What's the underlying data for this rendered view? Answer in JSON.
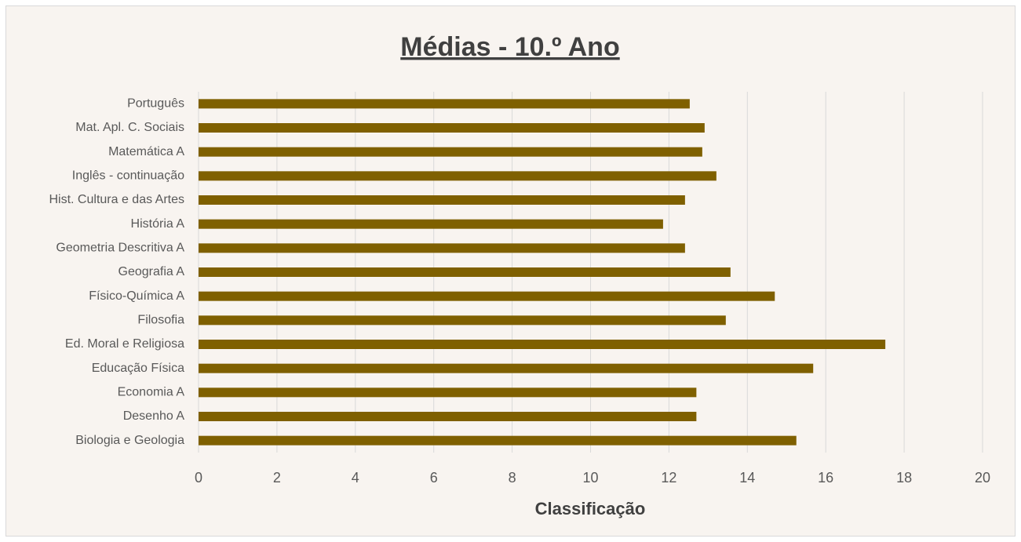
{
  "chart_data": {
    "type": "barh",
    "title": "Médias - 10.º Ano",
    "xlabel": "Classificação",
    "categories": [
      "Português",
      "Mat. Apl. C. Sociais",
      "Matemática A",
      "Inglês - continuação",
      "Hist. Cultura e das Artes",
      "História A",
      "Geometria Descritiva A",
      "Geografia A",
      "Físico-Química A",
      "Filosofia",
      "Ed. Moral e Religiosa",
      "Educação Física",
      "Economia A",
      "Desenho A",
      "Biologia e Geologia"
    ],
    "values": [
      12.53,
      12.91,
      12.85,
      13.21,
      12.41,
      11.85,
      12.41,
      13.57,
      14.7,
      13.45,
      17.52,
      15.68,
      12.7,
      12.7,
      15.25
    ],
    "color": "#7f6000",
    "xlim": [
      0,
      20
    ],
    "xticks": [
      0,
      2,
      4,
      6,
      8,
      10,
      12,
      14,
      16,
      18,
      20
    ],
    "grid": true
  }
}
